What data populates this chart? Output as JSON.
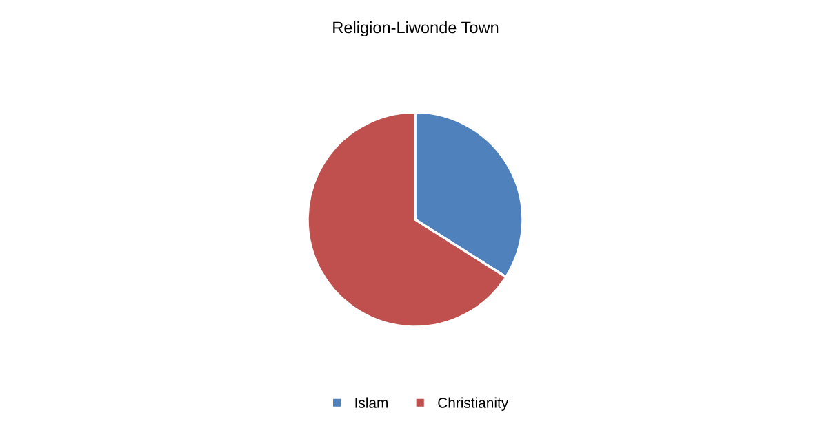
{
  "chart_data": {
    "type": "pie",
    "title": "Religion-Liwonde Town",
    "categories": [
      "Islam",
      "Christianity"
    ],
    "values": [
      34,
      66
    ],
    "colors": [
      "#4f81bd",
      "#c0504d"
    ],
    "legend": "bottom"
  }
}
